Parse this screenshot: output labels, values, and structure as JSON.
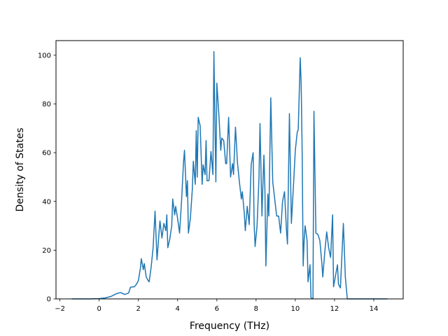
{
  "chart_data": {
    "type": "line",
    "title": "",
    "xlabel": "Frequency (THz)",
    "ylabel": "Density of States",
    "xlim": [
      -2.2,
      15.5
    ],
    "ylim": [
      0,
      106
    ],
    "x_ticks": [
      -2,
      0,
      2,
      4,
      6,
      8,
      10,
      12,
      14
    ],
    "y_ticks": [
      0,
      20,
      40,
      60,
      80,
      100
    ],
    "x_tick_labels": [
      "−2",
      "0",
      "2",
      "4",
      "6",
      "8",
      "10",
      "12",
      "14"
    ],
    "y_tick_labels": [
      "0",
      "20",
      "40",
      "60",
      "80",
      "100"
    ],
    "grid": false,
    "legend": "none",
    "series": [
      {
        "color": "#1f77b4",
        "points": [
          [
            -1.4,
            0
          ],
          [
            -1.0,
            0
          ],
          [
            -0.5,
            0
          ],
          [
            0.0,
            0.1
          ],
          [
            0.3,
            0.4
          ],
          [
            0.6,
            1.0
          ],
          [
            0.9,
            2.2
          ],
          [
            1.1,
            2.6
          ],
          [
            1.3,
            1.8
          ],
          [
            1.5,
            2.4
          ],
          [
            1.6,
            4.8
          ],
          [
            1.8,
            5.0
          ],
          [
            1.9,
            6.0
          ],
          [
            2.0,
            7.5
          ],
          [
            2.1,
            12.5
          ],
          [
            2.15,
            16.5
          ],
          [
            2.25,
            12.0
          ],
          [
            2.3,
            14.5
          ],
          [
            2.4,
            9.0
          ],
          [
            2.5,
            7.5
          ],
          [
            2.55,
            7.0
          ],
          [
            2.65,
            13.0
          ],
          [
            2.75,
            21.0
          ],
          [
            2.85,
            36.0
          ],
          [
            2.95,
            16.0
          ],
          [
            3.05,
            27.0
          ],
          [
            3.1,
            32.0
          ],
          [
            3.2,
            25.0
          ],
          [
            3.3,
            31.0
          ],
          [
            3.4,
            28.0
          ],
          [
            3.45,
            34.5
          ],
          [
            3.5,
            21.0
          ],
          [
            3.6,
            24.5
          ],
          [
            3.7,
            30.0
          ],
          [
            3.75,
            41.0
          ],
          [
            3.85,
            34.5
          ],
          [
            3.9,
            38.0
          ],
          [
            4.0,
            33.0
          ],
          [
            4.1,
            27.0
          ],
          [
            4.2,
            40.0
          ],
          [
            4.3,
            56.0
          ],
          [
            4.35,
            61.0
          ],
          [
            4.45,
            42.0
          ],
          [
            4.5,
            48.5
          ],
          [
            4.55,
            27.0
          ],
          [
            4.65,
            33.0
          ],
          [
            4.75,
            45.0
          ],
          [
            4.8,
            56.5
          ],
          [
            4.9,
            47.0
          ],
          [
            4.95,
            69.0
          ],
          [
            5.0,
            50.0
          ],
          [
            5.05,
            74.5
          ],
          [
            5.15,
            71.0
          ],
          [
            5.25,
            47.0
          ],
          [
            5.3,
            55.0
          ],
          [
            5.4,
            51.0
          ],
          [
            5.45,
            65.0
          ],
          [
            5.5,
            48.5
          ],
          [
            5.6,
            48.5
          ],
          [
            5.7,
            60.5
          ],
          [
            5.8,
            51.0
          ],
          [
            5.85,
            101.5
          ],
          [
            5.95,
            48.0
          ],
          [
            6.0,
            88.5
          ],
          [
            6.1,
            76.0
          ],
          [
            6.2,
            61.0
          ],
          [
            6.25,
            66.0
          ],
          [
            6.35,
            65.0
          ],
          [
            6.45,
            55.5
          ],
          [
            6.5,
            55.5
          ],
          [
            6.6,
            74.5
          ],
          [
            6.7,
            50.0
          ],
          [
            6.8,
            55.5
          ],
          [
            6.85,
            51.0
          ],
          [
            6.95,
            70.5
          ],
          [
            7.05,
            56.0
          ],
          [
            7.15,
            48.0
          ],
          [
            7.25,
            41.0
          ],
          [
            7.3,
            44.0
          ],
          [
            7.4,
            35.0
          ],
          [
            7.45,
            28.0
          ],
          [
            7.55,
            38.0
          ],
          [
            7.65,
            30.5
          ],
          [
            7.75,
            55.0
          ],
          [
            7.85,
            60.0
          ],
          [
            7.9,
            31.0
          ],
          [
            7.95,
            21.5
          ],
          [
            8.05,
            30.0
          ],
          [
            8.15,
            50.0
          ],
          [
            8.2,
            72.0
          ],
          [
            8.3,
            34.0
          ],
          [
            8.35,
            47.5
          ],
          [
            8.4,
            59.0
          ],
          [
            8.45,
            45.0
          ],
          [
            8.5,
            13.5
          ],
          [
            8.6,
            43.0
          ],
          [
            8.65,
            34.0
          ],
          [
            8.75,
            82.5
          ],
          [
            8.85,
            48.0
          ],
          [
            8.95,
            41.0
          ],
          [
            9.05,
            34.0
          ],
          [
            9.15,
            34.0
          ],
          [
            9.25,
            27.0
          ],
          [
            9.35,
            40.0
          ],
          [
            9.45,
            44.0
          ],
          [
            9.55,
            28.0
          ],
          [
            9.6,
            22.5
          ],
          [
            9.7,
            76.0
          ],
          [
            9.8,
            31.0
          ],
          [
            9.9,
            45.5
          ],
          [
            10.0,
            61.0
          ],
          [
            10.1,
            68.5
          ],
          [
            10.15,
            69.5
          ],
          [
            10.25,
            99.0
          ],
          [
            10.3,
            88.0
          ],
          [
            10.35,
            60.0
          ],
          [
            10.4,
            13.5
          ],
          [
            10.45,
            24.0
          ],
          [
            10.5,
            30.0
          ],
          [
            10.6,
            24.0
          ],
          [
            10.65,
            7.0
          ],
          [
            10.75,
            14.0
          ],
          [
            10.8,
            0.5
          ],
          [
            10.9,
            0.0
          ],
          [
            10.95,
            77.0
          ],
          [
            11.05,
            27.0
          ],
          [
            11.15,
            26.5
          ],
          [
            11.25,
            24.0
          ],
          [
            11.35,
            15.0
          ],
          [
            11.4,
            9.0
          ],
          [
            11.5,
            19.0
          ],
          [
            11.6,
            27.5
          ],
          [
            11.7,
            21.0
          ],
          [
            11.8,
            17.0
          ],
          [
            11.9,
            34.5
          ],
          [
            11.95,
            5.0
          ],
          [
            12.05,
            9.5
          ],
          [
            12.15,
            14.0
          ],
          [
            12.2,
            6.0
          ],
          [
            12.3,
            4.5
          ],
          [
            12.45,
            31.0
          ],
          [
            12.55,
            9.0
          ],
          [
            12.65,
            0.0
          ],
          [
            13.0,
            0.0
          ],
          [
            14.0,
            0.0
          ],
          [
            14.7,
            0.0
          ]
        ]
      }
    ]
  }
}
